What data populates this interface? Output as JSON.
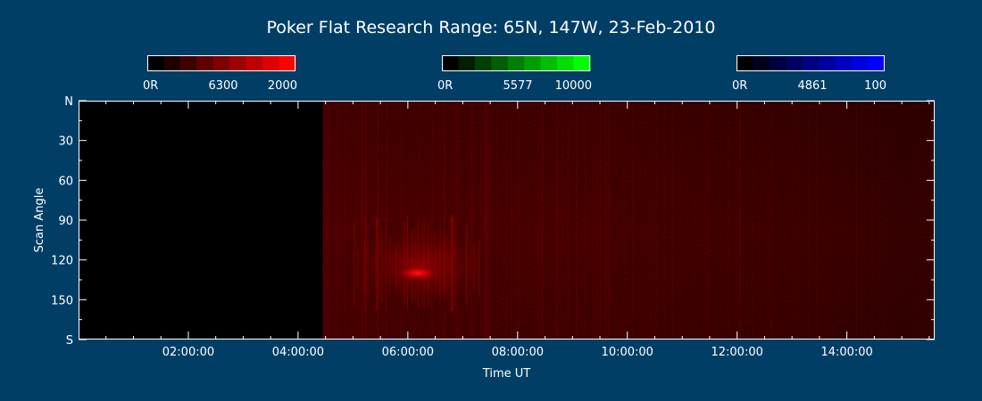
{
  "colors": {
    "background": "#003e66",
    "foreground": "#ffffff",
    "plot_background": "#000000",
    "emission_red": "#ff0000",
    "emission_green": "#00ff00",
    "emission_blue": "#0000ff"
  },
  "chart_data": {
    "type": "heatmap",
    "title": "Poker Flat Research Range: 65N, 147W, 23-Feb-2010",
    "xlabel": "Time UT",
    "ylabel": "Scan Angle",
    "x_ticks": [
      "02:00:00",
      "04:00:00",
      "06:00:00",
      "08:00:00",
      "10:00:00",
      "12:00:00",
      "14:00:00"
    ],
    "x_tick_hours": [
      2,
      4,
      6,
      8,
      10,
      12,
      14
    ],
    "xlim_hours": [
      0,
      15.6
    ],
    "y_ticks": [
      "N",
      "30",
      "60",
      "90",
      "120",
      "150",
      "S"
    ],
    "y_tick_values": [
      0,
      30,
      60,
      90,
      120,
      150,
      180
    ],
    "ylim": [
      0,
      180
    ],
    "y_inverted": true,
    "colorbars": [
      {
        "name": "6300",
        "min_label": "0R",
        "max_label": "2000",
        "color": "#ff0000"
      },
      {
        "name": "5577",
        "min_label": "0R",
        "max_label": "10000",
        "color": "#00ff00"
      },
      {
        "name": "4861",
        "min_label": "0R",
        "max_label": "100",
        "color": "#0000ff"
      }
    ],
    "data_start_hour": 4.45,
    "data_end_hour": 15.6,
    "features": [
      {
        "channel": "6300",
        "time_hour": 6.15,
        "scan_angle": 130,
        "intensity": 1.0
      }
    ]
  }
}
